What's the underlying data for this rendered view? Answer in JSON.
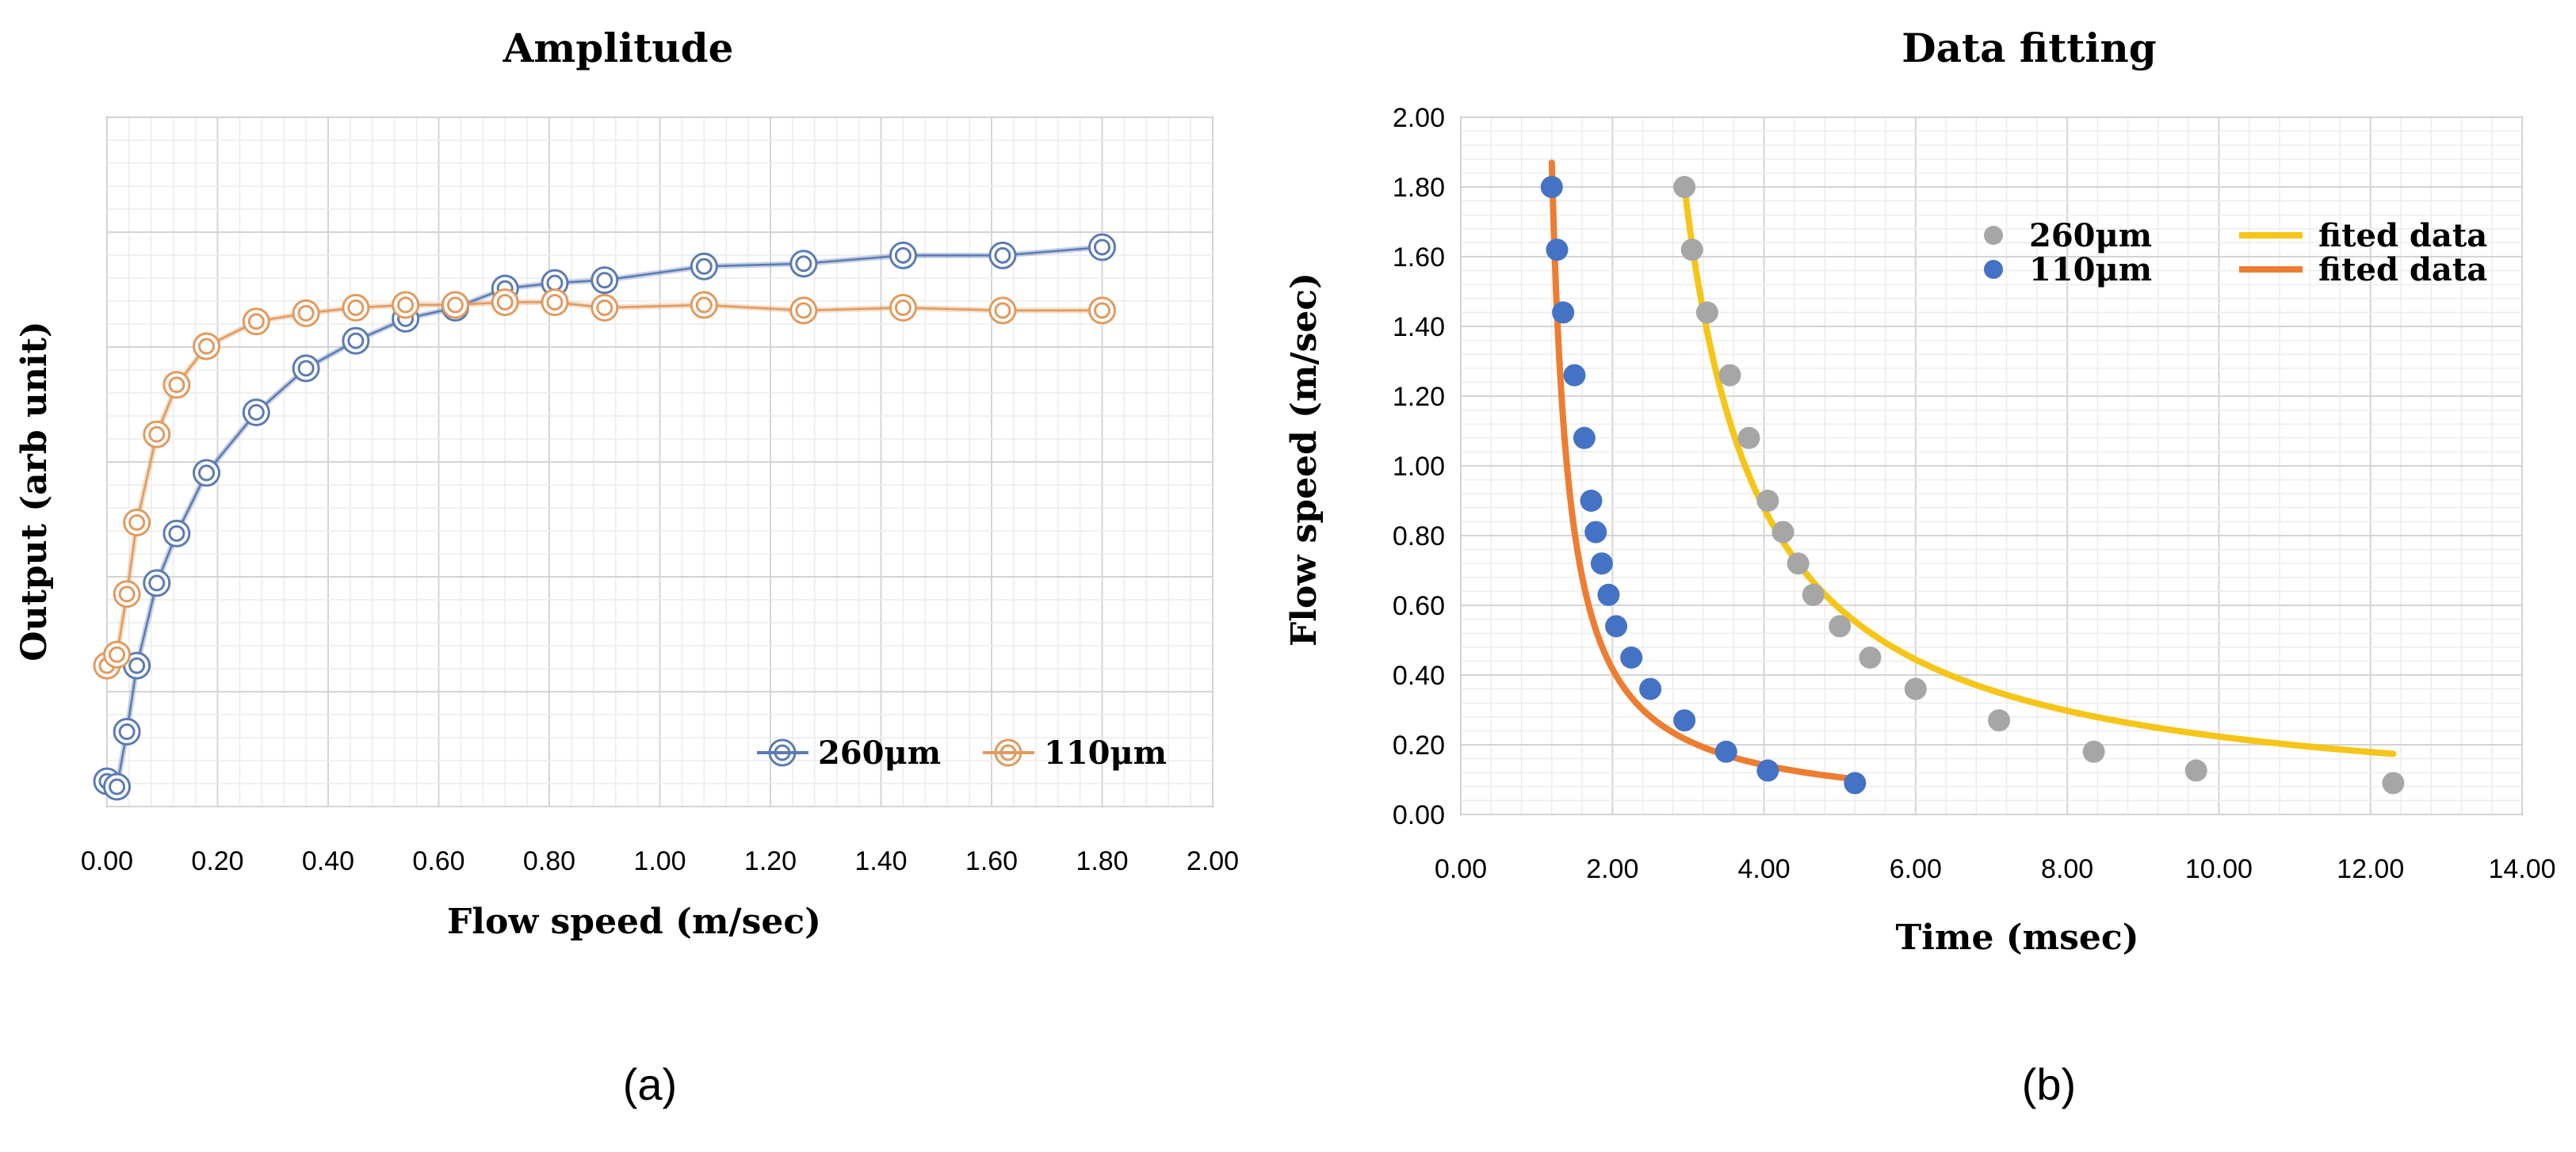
{
  "panel_labels": {
    "a": "(a)",
    "b": "(b)"
  },
  "chart_data": [
    {
      "type": "line",
      "title": "Amplitude",
      "xlabel": "Flow speed (m/sec)",
      "ylabel": "Output (arb unit)",
      "xlim": [
        0,
        2.0
      ],
      "x_ticks": [
        "0.00",
        "0.20",
        "0.40",
        "0.60",
        "0.80",
        "1.00",
        "1.20",
        "1.40",
        "1.60",
        "1.80",
        "2.00"
      ],
      "y_axis_labels_shown": false,
      "ylim": [
        0,
        1
      ],
      "legend": {
        "position": "bottom-right",
        "entries": [
          "260μm",
          "110μm"
        ]
      },
      "colors": {
        "260μm": "#5b7bb3",
        "110μm": "#e09a5e"
      },
      "series": [
        {
          "name": "260μm",
          "x": [
            0.0,
            0.018,
            0.036,
            0.054,
            0.09,
            0.126,
            0.18,
            0.27,
            0.36,
            0.45,
            0.54,
            0.63,
            0.72,
            0.81,
            0.9,
            1.08,
            1.26,
            1.44,
            1.62,
            1.8
          ],
          "y": [
            0.02,
            0.01,
            0.11,
            0.23,
            0.38,
            0.47,
            0.58,
            0.69,
            0.77,
            0.82,
            0.86,
            0.88,
            0.915,
            0.925,
            0.93,
            0.955,
            0.96,
            0.975,
            0.975,
            0.99
          ]
        },
        {
          "name": "110μm",
          "x": [
            0.0,
            0.018,
            0.036,
            0.054,
            0.09,
            0.126,
            0.18,
            0.27,
            0.36,
            0.45,
            0.54,
            0.63,
            0.72,
            0.81,
            0.9,
            1.08,
            1.26,
            1.44,
            1.62,
            1.8
          ],
          "y": [
            0.23,
            0.25,
            0.36,
            0.49,
            0.65,
            0.74,
            0.81,
            0.855,
            0.87,
            0.88,
            0.885,
            0.885,
            0.89,
            0.89,
            0.88,
            0.885,
            0.875,
            0.88,
            0.875,
            0.875
          ]
        }
      ]
    },
    {
      "type": "scatter",
      "title": "Data fitting",
      "xlabel": "Time (msec)",
      "ylabel": "Flow speed (m/sec)",
      "xlim": [
        0,
        14
      ],
      "ylim": [
        0,
        2
      ],
      "x_ticks": [
        "0.00",
        "2.00",
        "4.00",
        "6.00",
        "8.00",
        "10.00",
        "12.00",
        "14.00"
      ],
      "y_ticks": [
        "0.00",
        "0.20",
        "0.40",
        "0.60",
        "0.80",
        "1.00",
        "1.20",
        "1.40",
        "1.60",
        "1.80",
        "2.00"
      ],
      "legend": {
        "position": "top-right",
        "entries": [
          "260μm",
          "fited data",
          "110μm",
          "fited data"
        ]
      },
      "colors": {
        "260μm": "#a6a6a6",
        "fit_260": "#f5c518",
        "110μm": "#4472c4",
        "fit_110": "#ed7d31"
      },
      "series": [
        {
          "name": "260μm",
          "x": [
            2.95,
            3.05,
            3.25,
            3.55,
            3.8,
            4.05,
            4.25,
            4.45,
            4.65,
            5.0,
            5.4,
            6.0,
            7.1,
            8.35,
            9.7,
            12.3
          ],
          "y": [
            1.8,
            1.62,
            1.44,
            1.26,
            1.08,
            0.9,
            0.81,
            0.72,
            0.63,
            0.54,
            0.45,
            0.36,
            0.27,
            0.18,
            0.126,
            0.09
          ]
        },
        {
          "name": "110μm",
          "x": [
            1.2,
            1.27,
            1.35,
            1.5,
            1.63,
            1.72,
            1.78,
            1.86,
            1.95,
            2.05,
            2.25,
            2.5,
            2.95,
            3.5,
            4.05,
            5.2
          ],
          "y": [
            1.8,
            1.62,
            1.44,
            1.26,
            1.08,
            0.9,
            0.81,
            0.72,
            0.63,
            0.54,
            0.45,
            0.36,
            0.27,
            0.18,
            0.126,
            0.09
          ]
        }
      ],
      "fits": [
        {
          "name": "fited data",
          "for": "260μm",
          "model": "y = a/(x - c)",
          "a": 1.8,
          "c": 1.95,
          "x_range": [
            2.95,
            12.3
          ]
        },
        {
          "name": "fited data",
          "for": "110μm",
          "model": "y = a/(x - c)",
          "a": 0.43,
          "c": 0.97,
          "x_range": [
            1.2,
            5.2
          ]
        }
      ]
    }
  ]
}
